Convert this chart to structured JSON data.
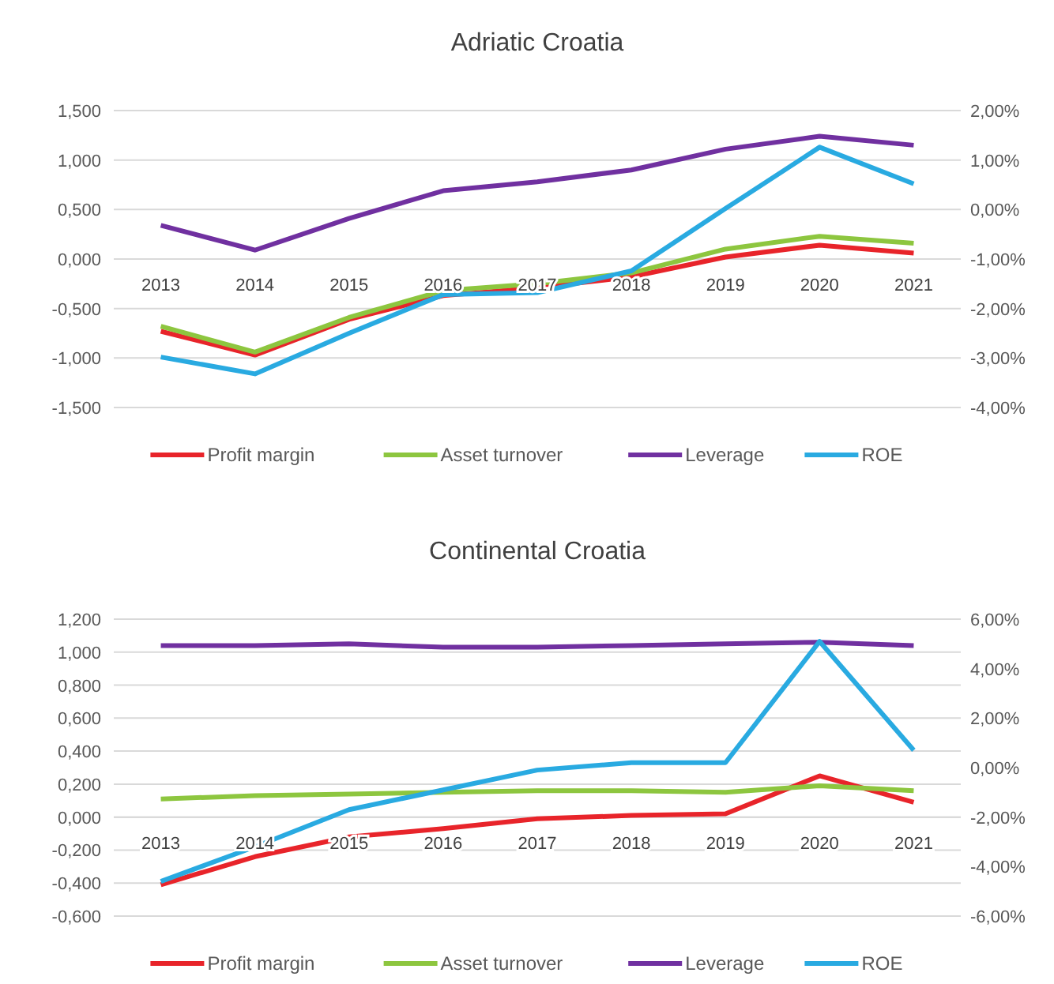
{
  "chart_data": [
    {
      "type": "line",
      "title": "Adriatic Croatia",
      "categories": [
        "2013",
        "2014",
        "2015",
        "2016",
        "2017",
        "2018",
        "2019",
        "2020",
        "2021"
      ],
      "series": [
        {
          "name": "Profit margin",
          "color": "#e8242a",
          "values": [
            -0.73,
            -0.97,
            -0.61,
            -0.37,
            -0.29,
            -0.18,
            0.02,
            0.14,
            0.06
          ]
        },
        {
          "name": "Asset turnover",
          "color": "#8dc63f",
          "values": [
            -0.68,
            -0.94,
            -0.59,
            -0.32,
            -0.25,
            -0.14,
            0.1,
            0.23,
            0.16
          ]
        },
        {
          "name": "Leverage",
          "color": "#7030a0",
          "values": [
            0.34,
            0.09,
            0.41,
            0.69,
            0.78,
            0.9,
            1.11,
            1.24,
            1.15
          ]
        },
        {
          "name": "ROE",
          "color": "#29aae1",
          "axis": "y2",
          "values": [
            -2.98,
            -3.32,
            -2.5,
            -1.72,
            -1.68,
            -1.24,
            0.02,
            1.26,
            0.52
          ]
        }
      ],
      "ylim": [
        -1.5,
        1.5
      ],
      "yticks": [
        {
          "value": -1.5,
          "label": "-1,500"
        },
        {
          "value": -1,
          "label": "-1,000"
        },
        {
          "value": -0.5,
          "label": "-0,500"
        },
        {
          "value": 0,
          "label": "0,000"
        },
        {
          "value": 0.5,
          "label": "0,500"
        },
        {
          "value": 1,
          "label": "1,000"
        },
        {
          "value": 1.5,
          "label": "1,500"
        }
      ],
      "y2lim": [
        -4,
        2
      ],
      "y2ticks": [
        {
          "value": -4,
          "label": "-4,00%"
        },
        {
          "value": -3,
          "label": "-3,00%"
        },
        {
          "value": -2,
          "label": "-2,00%"
        },
        {
          "value": -1,
          "label": "-1,00%"
        },
        {
          "value": 0,
          "label": "0,00%"
        },
        {
          "value": 1,
          "label": "1,00%"
        },
        {
          "value": 2,
          "label": "2,00%"
        }
      ],
      "grid": "y",
      "legend": "bottom",
      "marker": "none",
      "line_style": "solid"
    },
    {
      "type": "line",
      "title": "Continental Croatia",
      "categories": [
        "2013",
        "2014",
        "2015",
        "2016",
        "2017",
        "2018",
        "2019",
        "2020",
        "2021"
      ],
      "series": [
        {
          "name": "Profit margin",
          "color": "#e8242a",
          "values": [
            -0.41,
            -0.24,
            -0.12,
            -0.07,
            -0.01,
            0.01,
            0.02,
            0.25,
            0.09
          ]
        },
        {
          "name": "Asset turnover",
          "color": "#8dc63f",
          "values": [
            0.11,
            0.13,
            0.14,
            0.15,
            0.16,
            0.16,
            0.15,
            0.19,
            0.16
          ]
        },
        {
          "name": "Leverage",
          "color": "#7030a0",
          "values": [
            1.04,
            1.04,
            1.05,
            1.03,
            1.03,
            1.04,
            1.05,
            1.06,
            1.04
          ]
        },
        {
          "name": "ROE",
          "color": "#29aae1",
          "axis": "y2",
          "values": [
            -4.6,
            -3.2,
            -1.7,
            -0.9,
            -0.1,
            0.2,
            0.2,
            5.1,
            0.7
          ]
        }
      ],
      "ylim": [
        -0.6,
        1.2
      ],
      "yticks": [
        {
          "value": -0.6,
          "label": "-0,600"
        },
        {
          "value": -0.4,
          "label": "-0,400"
        },
        {
          "value": -0.2,
          "label": "-0,200"
        },
        {
          "value": 0,
          "label": "0,000"
        },
        {
          "value": 0.2,
          "label": "0,200"
        },
        {
          "value": 0.4,
          "label": "0,400"
        },
        {
          "value": 0.6,
          "label": "0,600"
        },
        {
          "value": 0.8,
          "label": "0,800"
        },
        {
          "value": 1,
          "label": "1,000"
        },
        {
          "value": 1.2,
          "label": "1,200"
        }
      ],
      "y2lim": [
        -6,
        6
      ],
      "y2ticks": [
        {
          "value": -6,
          "label": "-6,00%"
        },
        {
          "value": -4,
          "label": "-4,00%"
        },
        {
          "value": -2,
          "label": "-2,00%"
        },
        {
          "value": 0,
          "label": "0,00%"
        },
        {
          "value": 2,
          "label": "2,00%"
        },
        {
          "value": 4,
          "label": "4,00%"
        },
        {
          "value": 6,
          "label": "6,00%"
        }
      ],
      "grid": "y",
      "legend": "bottom",
      "marker": "none",
      "line_style": "solid"
    }
  ]
}
